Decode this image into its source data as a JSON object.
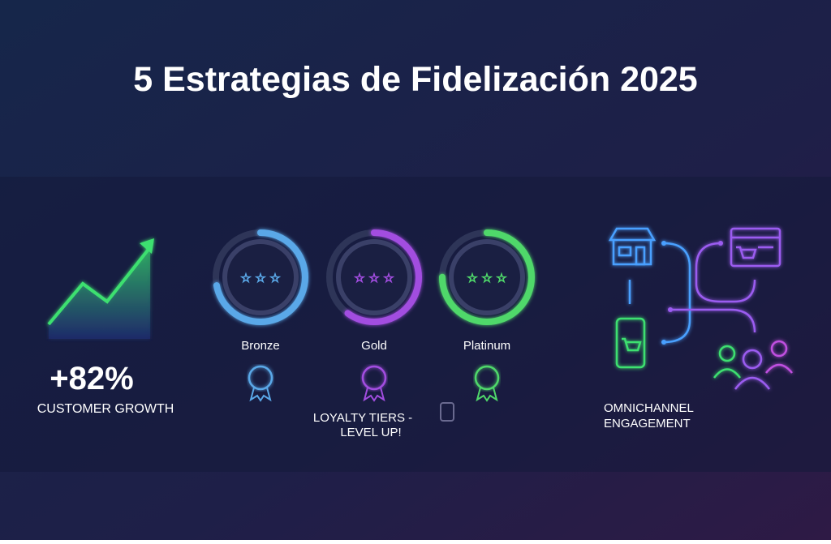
{
  "header": {
    "title": "5 Estrategias de Fidelización 2025"
  },
  "growth": {
    "value": "+82%",
    "label": "CUSTOMER GROWTH"
  },
  "tiers": {
    "items": [
      "Bronze",
      "Gold",
      "Platinum"
    ],
    "caption": [
      "LOYALTY TIERS -",
      "LEVEL UP!"
    ]
  },
  "omnichannel": {
    "label": [
      "OMNICHANNEL",
      "ENGAGEMENT"
    ]
  }
}
